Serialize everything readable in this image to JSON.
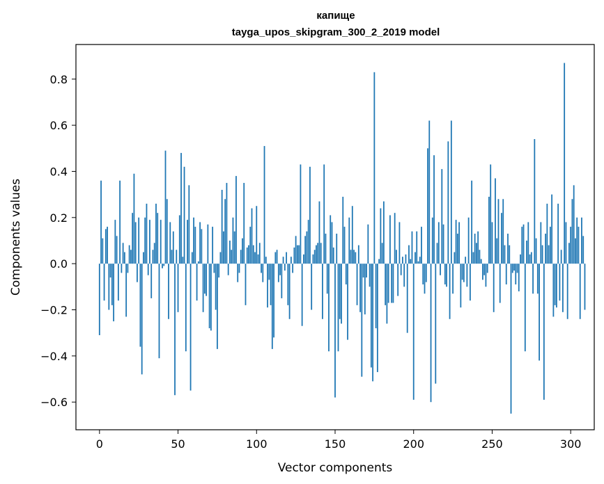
{
  "chart_data": {
    "type": "bar",
    "title": "капище",
    "subtitle": "tayga_upos_skipgram_300_2_2019 model",
    "xlabel": "Vector components",
    "ylabel": "Components values",
    "xlim": [
      -15,
      315
    ],
    "ylim": [
      -0.72,
      0.95
    ],
    "xticks": [
      0,
      50,
      100,
      150,
      200,
      250,
      300
    ],
    "yticks": [
      -0.6,
      -0.4,
      -0.2,
      0.0,
      0.2,
      0.4,
      0.6,
      0.8
    ],
    "ytick_labels": [
      "−0.6",
      "−0.4",
      "−0.2",
      "0.0",
      "0.2",
      "0.4",
      "0.6",
      "0.8"
    ],
    "bar_color": "#1f77b4",
    "grid": false,
    "values": [
      -0.31,
      0.36,
      0.11,
      -0.16,
      0.15,
      0.16,
      -0.2,
      -0.06,
      -0.18,
      -0.25,
      0.19,
      0.12,
      -0.16,
      0.36,
      -0.04,
      0.09,
      0.05,
      -0.23,
      -0.04,
      0.08,
      0.06,
      0.22,
      0.39,
      0.18,
      -0.08,
      0.2,
      -0.36,
      -0.48,
      0.05,
      0.2,
      0.26,
      -0.05,
      0.19,
      -0.15,
      0.06,
      0.09,
      0.26,
      0.22,
      -0.41,
      0.19,
      -0.02,
      -0.01,
      0.49,
      0.28,
      -0.24,
      0.18,
      0.06,
      0.14,
      -0.57,
      0.06,
      -0.21,
      0.21,
      0.48,
      0.03,
      0.42,
      -0.38,
      0.19,
      0.34,
      -0.55,
      0.05,
      0.2,
      0.16,
      -0.16,
      0.01,
      0.18,
      0.15,
      -0.21,
      -0.13,
      -0.14,
      0.17,
      -0.28,
      -0.29,
      0.16,
      -0.04,
      -0.2,
      -0.37,
      -0.06,
      0.05,
      0.32,
      0.14,
      0.28,
      0.35,
      -0.05,
      0.1,
      0.06,
      0.2,
      0.14,
      0.38,
      -0.08,
      -0.04,
      0.06,
      0.11,
      0.35,
      -0.18,
      0.07,
      0.08,
      0.16,
      0.24,
      0.08,
      0.05,
      0.25,
      0.04,
      0.09,
      -0.04,
      -0.08,
      0.51,
      0.03,
      -0.19,
      -0.07,
      -0.18,
      -0.37,
      -0.32,
      0.05,
      0.06,
      -0.08,
      -0.05,
      -0.15,
      0.03,
      -0.03,
      0.05,
      -0.18,
      -0.24,
      0.03,
      -0.04,
      0.07,
      0.12,
      0.08,
      0.08,
      0.43,
      -0.27,
      0.04,
      0.12,
      0.14,
      0.19,
      0.42,
      -0.2,
      0.04,
      0.06,
      0.08,
      0.09,
      0.27,
      0.09,
      -0.24,
      0.43,
      0.13,
      -0.13,
      -0.38,
      0.21,
      0.18,
      0.07,
      -0.58,
      0.13,
      -0.38,
      -0.24,
      -0.26,
      0.29,
      0.16,
      -0.09,
      -0.33,
      0.2,
      0.06,
      0.25,
      0.06,
      0.05,
      -0.18,
      0.08,
      -0.21,
      -0.49,
      -0.06,
      -0.22,
      -0.06,
      0.17,
      -0.1,
      -0.45,
      -0.51,
      0.83,
      -0.28,
      -0.47,
      0.02,
      0.24,
      0.09,
      0.27,
      -0.18,
      -0.26,
      -0.17,
      0.21,
      -0.17,
      -0.17,
      0.22,
      0.06,
      -0.14,
      0.18,
      -0.05,
      0.03,
      -0.1,
      0.04,
      -0.3,
      0.08,
      0.02,
      0.14,
      -0.59,
      0.05,
      0.14,
      0.01,
      0.03,
      0.16,
      -0.09,
      -0.13,
      -0.08,
      0.5,
      0.62,
      -0.6,
      0.2,
      0.47,
      -0.52,
      0.09,
      0.18,
      -0.05,
      0.41,
      0.17,
      -0.09,
      -0.1,
      0.53,
      -0.24,
      0.62,
      -0.13,
      0.05,
      0.19,
      0.13,
      0.18,
      -0.19,
      -0.07,
      -0.08,
      0.03,
      -0.1,
      0.2,
      -0.16,
      0.36,
      0.05,
      0.13,
      0.09,
      0.14,
      0.06,
      0.02,
      -0.07,
      -0.05,
      -0.1,
      -0.04,
      0.29,
      0.43,
      0.18,
      -0.21,
      0.37,
      0.11,
      0.28,
      -0.17,
      0.22,
      0.28,
      0.08,
      -0.09,
      0.13,
      0.08,
      -0.65,
      -0.04,
      -0.03,
      -0.09,
      -0.04,
      -0.12,
      0.04,
      0.16,
      0.17,
      -0.38,
      0.1,
      0.18,
      0.04,
      0.05,
      -0.13,
      0.54,
      0.11,
      -0.13,
      -0.42,
      0.18,
      0.08,
      -0.59,
      0.13,
      0.26,
      0.08,
      0.16,
      0.3,
      -0.23,
      -0.18,
      -0.19,
      0.26,
      -0.16,
      0.06,
      -0.21,
      0.87,
      0.18,
      -0.24,
      0.09,
      0.16,
      0.28,
      0.34,
      0.11,
      0.2,
      0.16,
      -0.24,
      0.2,
      0.12,
      -0.2
    ]
  }
}
